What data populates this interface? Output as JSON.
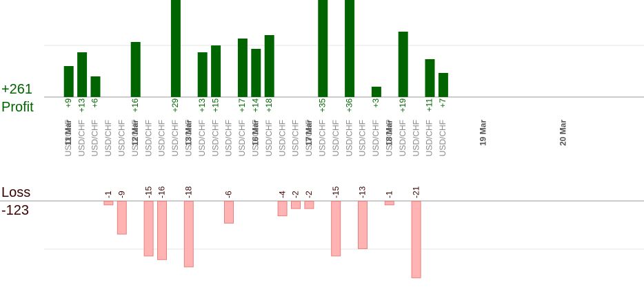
{
  "summary": {
    "profit_total": "+261",
    "profit_label": "Profit",
    "loss_label": "Loss",
    "loss_total": "-123"
  },
  "colors": {
    "profit_bar": "#006400",
    "profit_text": "#006400",
    "loss_bar": "#ffb3b3",
    "loss_bar_stroke": "#e88080",
    "loss_text": "#3a0000",
    "date_text": "#555555",
    "pair_text": "#888888",
    "grid": "#e6e6e6",
    "axis": "#999999"
  },
  "chart_data": {
    "type": "bar",
    "title": "",
    "grid": true,
    "profit_axis_max": 20,
    "loss_axis_max": 20,
    "date_labels": [
      {
        "date": "11 Mar",
        "slot": 0
      },
      {
        "date": "12 Mar",
        "slot": 5
      },
      {
        "date": "13 Mar",
        "slot": 9
      },
      {
        "date": "16 Mar",
        "slot": 14
      },
      {
        "date": "17 Mar",
        "slot": 18
      },
      {
        "date": "18 Mar",
        "slot": 24
      },
      {
        "date": "19 Mar",
        "slot": 31
      },
      {
        "date": "20 Mar",
        "slot": 37
      }
    ],
    "trades": [
      {
        "pair": "USD/CHF",
        "result": 9
      },
      {
        "pair": "USD/CHF",
        "result": 13
      },
      {
        "pair": "USD/CHF",
        "result": 6
      },
      {
        "pair": "USD/CHF",
        "result": -1
      },
      {
        "pair": "USD/CHF",
        "result": -9
      },
      {
        "pair": "USD/CHF",
        "result": 16
      },
      {
        "pair": "USD/CHF",
        "result": -15
      },
      {
        "pair": "USD/CHF",
        "result": -16
      },
      {
        "pair": "USD/CHF",
        "result": 29
      },
      {
        "pair": "USD/CHF",
        "result": -18
      },
      {
        "pair": "USD/CHF",
        "result": 13
      },
      {
        "pair": "USD/CHF",
        "result": 15
      },
      {
        "pair": "USD/CHF",
        "result": -6
      },
      {
        "pair": "USD/CHF",
        "result": 17
      },
      {
        "pair": "USD/CHF",
        "result": 14
      },
      {
        "pair": "USD/CHF",
        "result": 18
      },
      {
        "pair": "USD/CHF",
        "result": -4
      },
      {
        "pair": "USD/CHF",
        "result": -2
      },
      {
        "pair": "USD/CHF",
        "result": -2
      },
      {
        "pair": "USD/CHF",
        "result": 35
      },
      {
        "pair": "USD/CHF",
        "result": -15
      },
      {
        "pair": "USD/CHF",
        "result": 36
      },
      {
        "pair": "USD/CHF",
        "result": -13
      },
      {
        "pair": "USD/CHF",
        "result": 3
      },
      {
        "pair": "USD/CHF",
        "result": -1
      },
      {
        "pair": "USD/CHF",
        "result": 19
      },
      {
        "pair": "USD/CHF",
        "result": -21
      },
      {
        "pair": "USD/CHF",
        "result": 11
      },
      {
        "pair": "USD/CHF",
        "result": 7
      }
    ]
  }
}
